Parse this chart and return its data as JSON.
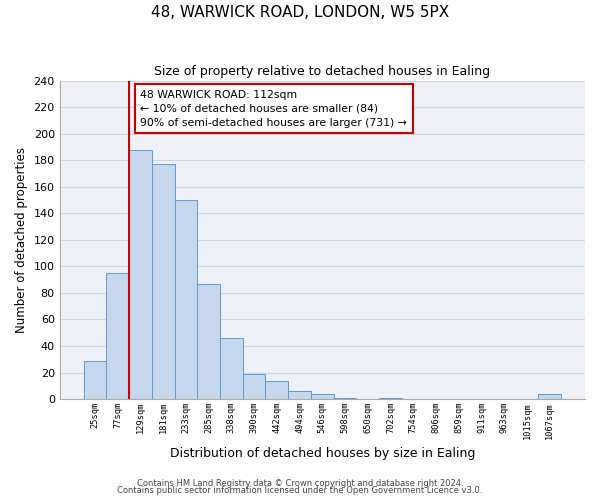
{
  "title": "48, WARWICK ROAD, LONDON, W5 5PX",
  "subtitle": "Size of property relative to detached houses in Ealing",
  "xlabel": "Distribution of detached houses by size in Ealing",
  "ylabel": "Number of detached properties",
  "bin_labels": [
    "25sqm",
    "77sqm",
    "129sqm",
    "181sqm",
    "233sqm",
    "285sqm",
    "338sqm",
    "390sqm",
    "442sqm",
    "494sqm",
    "546sqm",
    "598sqm",
    "650sqm",
    "702sqm",
    "754sqm",
    "806sqm",
    "859sqm",
    "911sqm",
    "963sqm",
    "1015sqm",
    "1067sqm"
  ],
  "bar_heights": [
    29,
    95,
    188,
    177,
    150,
    87,
    46,
    19,
    14,
    6,
    4,
    1,
    0,
    1,
    0,
    0,
    0,
    0,
    0,
    0,
    4
  ],
  "bar_color": "#c5d8ee",
  "bar_edge_color": "#5b9bd5",
  "vline_color": "#cc0000",
  "vline_x_idx": 1.5,
  "annotation_text_line1": "48 WARWICK ROAD: 112sqm",
  "annotation_text_line2": "← 10% of detached houses are smaller (84)",
  "annotation_text_line3": "90% of semi-detached houses are larger (731) →",
  "annotation_box_edge": "#cc0000",
  "ylim": [
    0,
    240
  ],
  "yticks": [
    0,
    20,
    40,
    60,
    80,
    100,
    120,
    140,
    160,
    180,
    200,
    220,
    240
  ],
  "footer_line1": "Contains HM Land Registry data © Crown copyright and database right 2024.",
  "footer_line2": "Contains public sector information licensed under the Open Government Licence v3.0.",
  "grid_color": "#c8d8e8",
  "background_color": "#eef2f8"
}
